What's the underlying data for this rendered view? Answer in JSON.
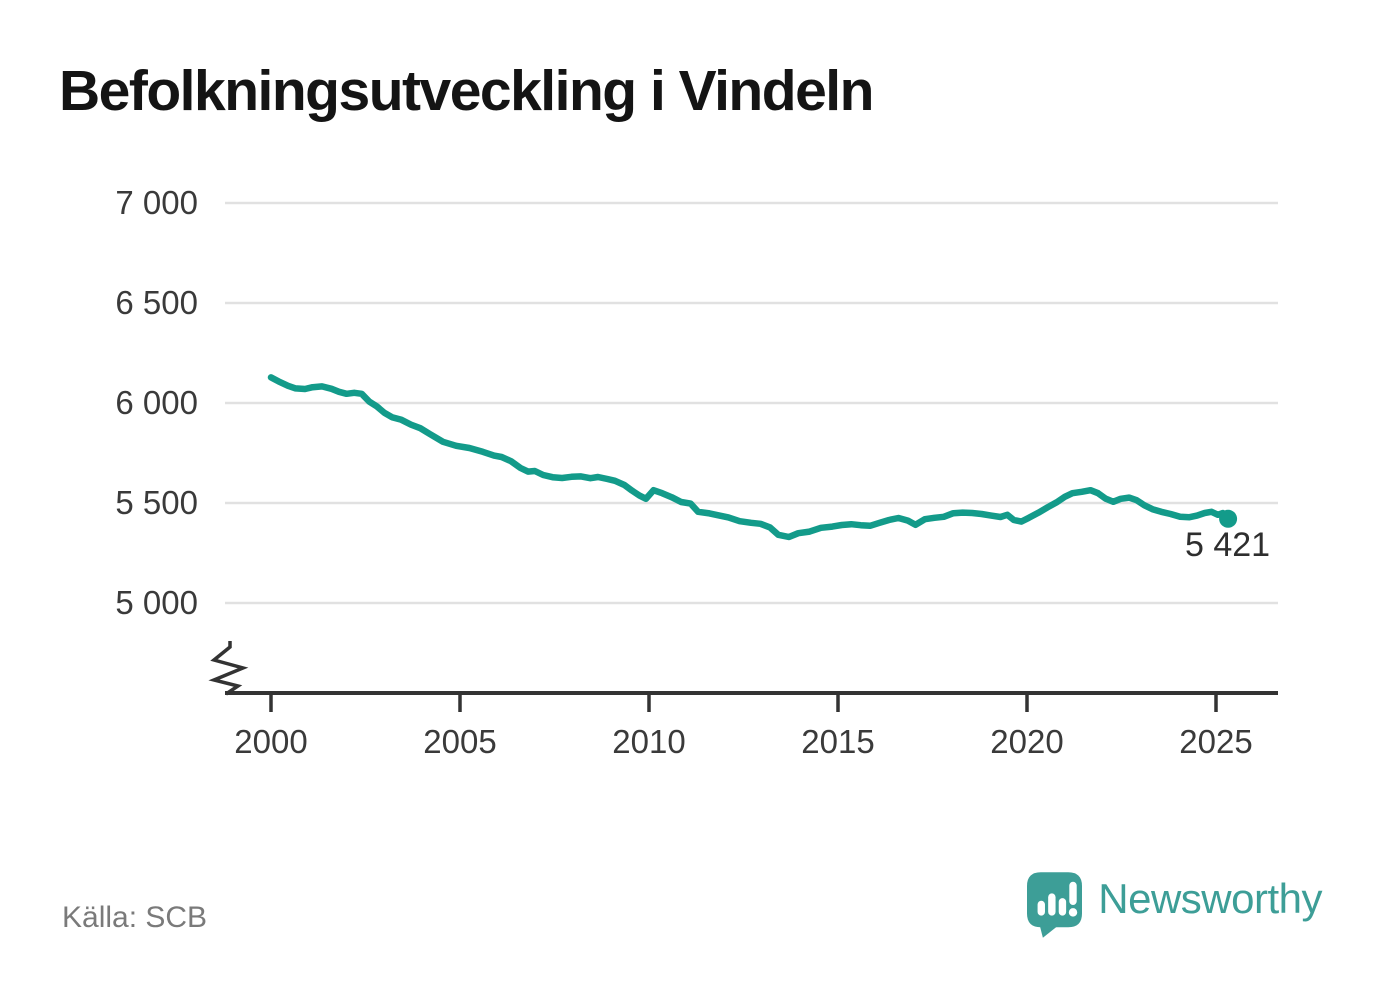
{
  "title": "Befolkningsutveckling i Vindeln",
  "source": "Källa: SCB",
  "brand": {
    "name": "Newsworthy"
  },
  "colors": {
    "line": "#139b8a",
    "grid": "#e1e1e1",
    "axis": "#333333",
    "text": "#3a3a3a",
    "muted": "#7a7a7a",
    "brand": "#3d9e97",
    "endlabel": "#2e2e2e"
  },
  "chart_data": {
    "type": "line",
    "title": "Befolkningsutveckling i Vindeln",
    "xlabel": "",
    "ylabel": "",
    "xlim": [
      2000,
      2026.6
    ],
    "ylim": [
      5000,
      7000
    ],
    "y_axis_break": true,
    "grid": "horizontal",
    "legend": "none",
    "x_ticks": [
      2000,
      2005,
      2010,
      2015,
      2020,
      2025
    ],
    "y_ticks": [
      {
        "value": 7000,
        "label": "7 000"
      },
      {
        "value": 6500,
        "label": "6 500"
      },
      {
        "value": 6000,
        "label": "6 000"
      },
      {
        "value": 5500,
        "label": "5 500"
      },
      {
        "value": 5000,
        "label": "5 000"
      }
    ],
    "end_label": "5 421",
    "last_value": 5421,
    "series": [
      {
        "points": [
          [
            2000.0,
            6128
          ],
          [
            2000.2,
            6108
          ],
          [
            2000.45,
            6086
          ],
          [
            2000.65,
            6073
          ],
          [
            2000.9,
            6070
          ],
          [
            2001.1,
            6079
          ],
          [
            2001.35,
            6083
          ],
          [
            2001.6,
            6071
          ],
          [
            2001.8,
            6056
          ],
          [
            2002.0,
            6046
          ],
          [
            2002.2,
            6051
          ],
          [
            2002.4,
            6046
          ],
          [
            2002.6,
            6007
          ],
          [
            2002.8,
            5983
          ],
          [
            2003.0,
            5951
          ],
          [
            2003.2,
            5929
          ],
          [
            2003.45,
            5916
          ],
          [
            2003.7,
            5892
          ],
          [
            2003.95,
            5874
          ],
          [
            2004.2,
            5845
          ],
          [
            2004.55,
            5806
          ],
          [
            2004.9,
            5786
          ],
          [
            2005.25,
            5775
          ],
          [
            2005.6,
            5756
          ],
          [
            2005.9,
            5737
          ],
          [
            2006.1,
            5730
          ],
          [
            2006.35,
            5709
          ],
          [
            2006.6,
            5675
          ],
          [
            2006.8,
            5657
          ],
          [
            2006.98,
            5660
          ],
          [
            2007.2,
            5640
          ],
          [
            2007.45,
            5629
          ],
          [
            2007.7,
            5625
          ],
          [
            2007.95,
            5631
          ],
          [
            2008.2,
            5633
          ],
          [
            2008.45,
            5624
          ],
          [
            2008.65,
            5630
          ],
          [
            2008.9,
            5620
          ],
          [
            2009.1,
            5611
          ],
          [
            2009.35,
            5590
          ],
          [
            2009.55,
            5562
          ],
          [
            2009.75,
            5537
          ],
          [
            2009.92,
            5521
          ],
          [
            2010.12,
            5564
          ],
          [
            2010.35,
            5549
          ],
          [
            2010.6,
            5529
          ],
          [
            2010.85,
            5505
          ],
          [
            2011.1,
            5497
          ],
          [
            2011.3,
            5456
          ],
          [
            2011.6,
            5448
          ],
          [
            2011.85,
            5438
          ],
          [
            2012.1,
            5428
          ],
          [
            2012.4,
            5409
          ],
          [
            2012.7,
            5401
          ],
          [
            2012.95,
            5396
          ],
          [
            2013.2,
            5378
          ],
          [
            2013.42,
            5341
          ],
          [
            2013.7,
            5330
          ],
          [
            2013.95,
            5349
          ],
          [
            2014.25,
            5357
          ],
          [
            2014.55,
            5376
          ],
          [
            2014.85,
            5382
          ],
          [
            2015.1,
            5390
          ],
          [
            2015.35,
            5394
          ],
          [
            2015.6,
            5389
          ],
          [
            2015.85,
            5386
          ],
          [
            2016.1,
            5401
          ],
          [
            2016.35,
            5415
          ],
          [
            2016.6,
            5425
          ],
          [
            2016.85,
            5412
          ],
          [
            2017.05,
            5391
          ],
          [
            2017.3,
            5419
          ],
          [
            2017.55,
            5426
          ],
          [
            2017.8,
            5431
          ],
          [
            2018.05,
            5449
          ],
          [
            2018.3,
            5452
          ],
          [
            2018.55,
            5450
          ],
          [
            2018.8,
            5445
          ],
          [
            2019.05,
            5437
          ],
          [
            2019.3,
            5430
          ],
          [
            2019.48,
            5441
          ],
          [
            2019.65,
            5415
          ],
          [
            2019.85,
            5407
          ],
          [
            2020.05,
            5426
          ],
          [
            2020.3,
            5451
          ],
          [
            2020.55,
            5479
          ],
          [
            2020.78,
            5503
          ],
          [
            2021.0,
            5531
          ],
          [
            2021.2,
            5549
          ],
          [
            2021.45,
            5556
          ],
          [
            2021.68,
            5564
          ],
          [
            2021.88,
            5549
          ],
          [
            2022.08,
            5522
          ],
          [
            2022.28,
            5506
          ],
          [
            2022.48,
            5521
          ],
          [
            2022.7,
            5527
          ],
          [
            2022.9,
            5514
          ],
          [
            2023.1,
            5489
          ],
          [
            2023.32,
            5469
          ],
          [
            2023.55,
            5456
          ],
          [
            2023.8,
            5445
          ],
          [
            2024.05,
            5431
          ],
          [
            2024.3,
            5429
          ],
          [
            2024.5,
            5437
          ],
          [
            2024.7,
            5450
          ],
          [
            2024.88,
            5456
          ],
          [
            2025.05,
            5441
          ],
          [
            2025.18,
            5450
          ],
          [
            2025.32,
            5421
          ]
        ]
      }
    ]
  }
}
